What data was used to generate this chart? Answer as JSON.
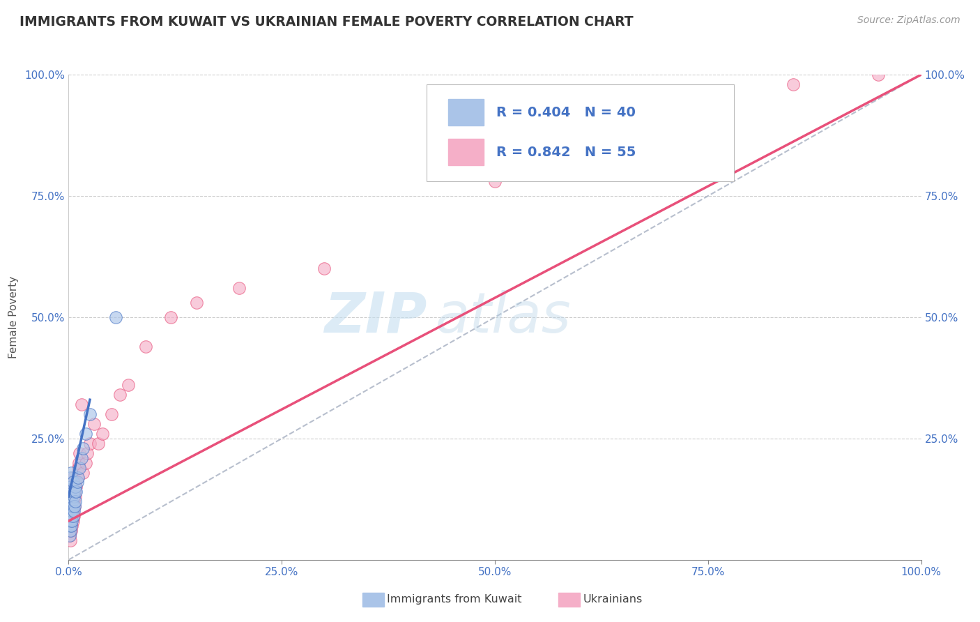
{
  "title": "IMMIGRANTS FROM KUWAIT VS UKRAINIAN FEMALE POVERTY CORRELATION CHART",
  "source": "Source: ZipAtlas.com",
  "ylabel": "Female Poverty",
  "xlim": [
    0,
    1.0
  ],
  "ylim": [
    0,
    1.0
  ],
  "xticks": [
    0,
    0.25,
    0.5,
    0.75,
    1.0
  ],
  "yticks": [
    0.25,
    0.5,
    0.75,
    1.0
  ],
  "legend_label1": "Immigrants from Kuwait",
  "legend_label2": "Ukrainians",
  "r1": 0.404,
  "n1": 40,
  "r2": 0.842,
  "n2": 55,
  "color1": "#aac4e8",
  "color2": "#f5afc8",
  "line_color1": "#4472c4",
  "line_color2": "#e8507a",
  "diagonal_color": "#b0b8c8",
  "background_color": "#ffffff",
  "watermark_zip": "ZIP",
  "watermark_atlas": "atlas",
  "kuwait_x": [
    0.001,
    0.001,
    0.001,
    0.001,
    0.001,
    0.002,
    0.002,
    0.002,
    0.002,
    0.002,
    0.002,
    0.002,
    0.003,
    0.003,
    0.003,
    0.003,
    0.003,
    0.003,
    0.004,
    0.004,
    0.004,
    0.005,
    0.005,
    0.005,
    0.005,
    0.006,
    0.006,
    0.007,
    0.007,
    0.008,
    0.008,
    0.009,
    0.01,
    0.011,
    0.013,
    0.015,
    0.017,
    0.02,
    0.025,
    0.055
  ],
  "kuwait_y": [
    0.05,
    0.07,
    0.08,
    0.1,
    0.12,
    0.06,
    0.08,
    0.09,
    0.11,
    0.13,
    0.15,
    0.17,
    0.07,
    0.09,
    0.11,
    0.13,
    0.15,
    0.18,
    0.08,
    0.1,
    0.12,
    0.09,
    0.11,
    0.14,
    0.16,
    0.1,
    0.13,
    0.11,
    0.14,
    0.12,
    0.15,
    0.14,
    0.16,
    0.17,
    0.19,
    0.21,
    0.23,
    0.26,
    0.3,
    0.5
  ],
  "ukraine_x": [
    0.001,
    0.001,
    0.001,
    0.001,
    0.002,
    0.002,
    0.002,
    0.002,
    0.002,
    0.002,
    0.003,
    0.003,
    0.003,
    0.003,
    0.003,
    0.004,
    0.004,
    0.004,
    0.004,
    0.005,
    0.005,
    0.005,
    0.005,
    0.006,
    0.006,
    0.006,
    0.007,
    0.007,
    0.008,
    0.008,
    0.009,
    0.01,
    0.011,
    0.012,
    0.013,
    0.015,
    0.017,
    0.02,
    0.022,
    0.025,
    0.03,
    0.035,
    0.04,
    0.05,
    0.06,
    0.07,
    0.09,
    0.12,
    0.15,
    0.2,
    0.3,
    0.5,
    0.65,
    0.85,
    0.95
  ],
  "ukraine_y": [
    0.05,
    0.06,
    0.08,
    0.1,
    0.04,
    0.07,
    0.09,
    0.11,
    0.13,
    0.15,
    0.06,
    0.08,
    0.1,
    0.13,
    0.16,
    0.07,
    0.09,
    0.12,
    0.14,
    0.08,
    0.1,
    0.13,
    0.17,
    0.09,
    0.12,
    0.15,
    0.11,
    0.14,
    0.13,
    0.16,
    0.15,
    0.17,
    0.19,
    0.2,
    0.22,
    0.32,
    0.18,
    0.2,
    0.22,
    0.24,
    0.28,
    0.24,
    0.26,
    0.3,
    0.34,
    0.36,
    0.44,
    0.5,
    0.53,
    0.56,
    0.6,
    0.78,
    0.82,
    0.98,
    1.0
  ],
  "ukraine_line_x": [
    0.0,
    1.0
  ],
  "ukraine_line_y": [
    0.08,
    1.0
  ],
  "kuwait_line_x": [
    0.0,
    0.025
  ],
  "kuwait_line_y": [
    0.13,
    0.33
  ]
}
